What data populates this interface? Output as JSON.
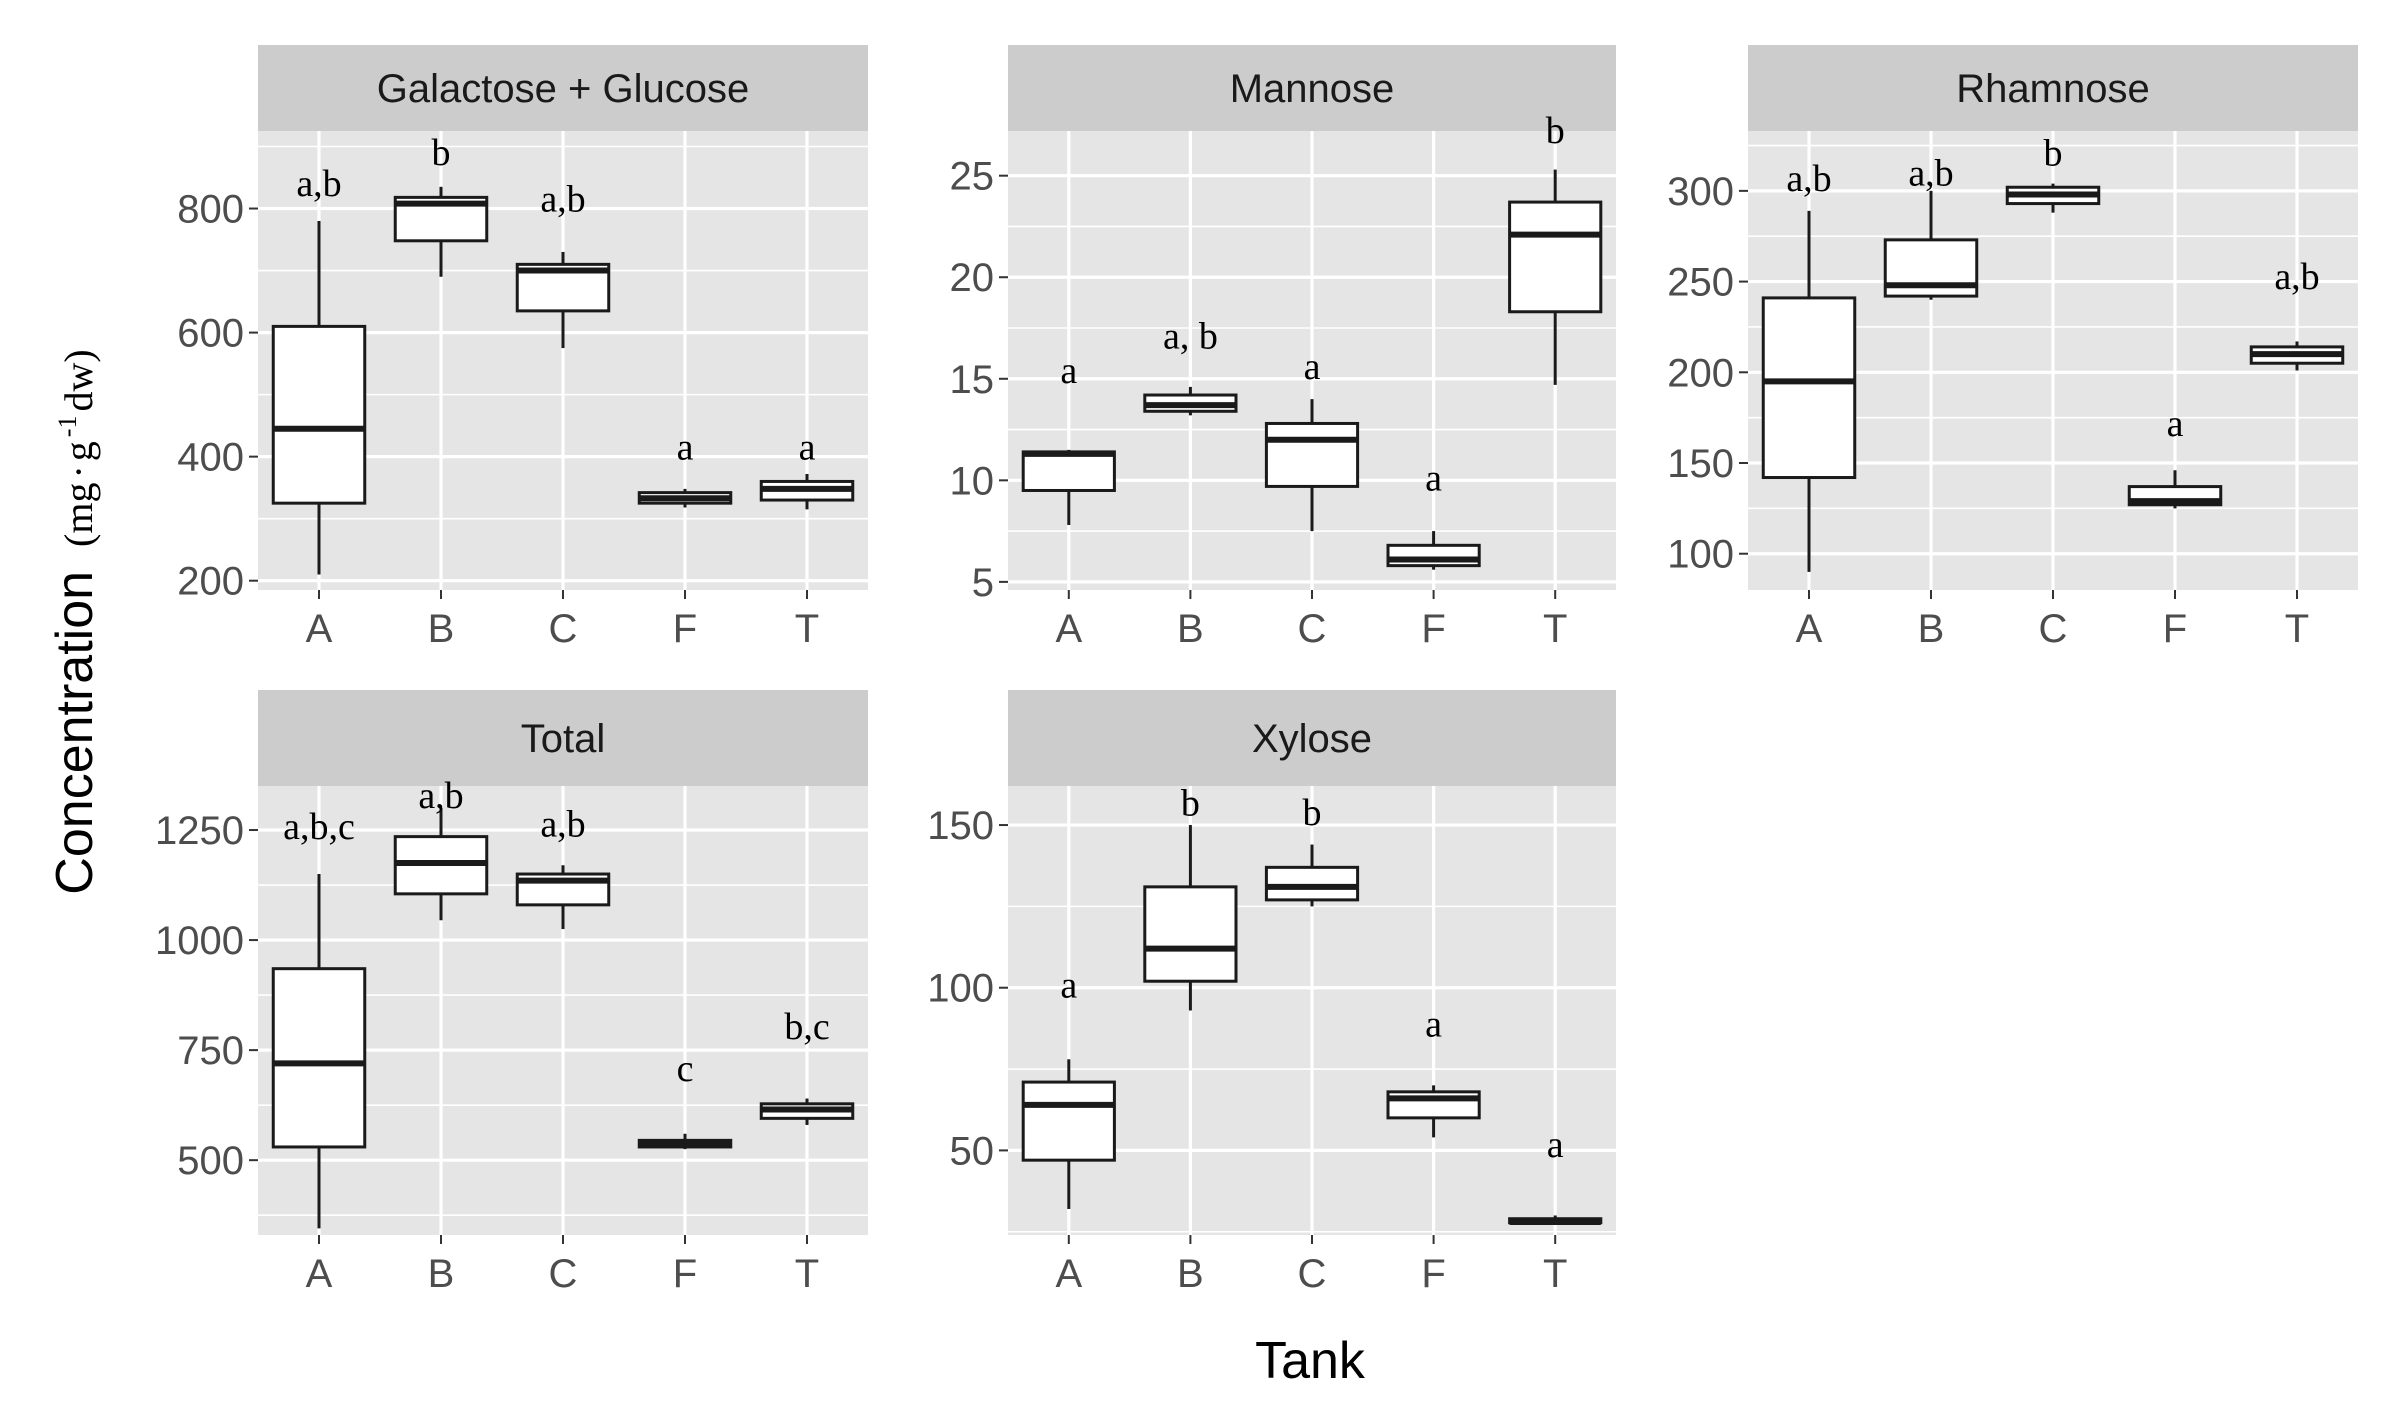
{
  "colors": {
    "panel_bg": "#e5e5e5",
    "strip_bg": "#cccccc",
    "grid": "#ffffff",
    "box_fill": "#ffffff",
    "box_line": "#1a1a1a",
    "tick_text": "#4d4d4d"
  },
  "axis_titles": {
    "x": "Tank",
    "y": "Concentration",
    "y_unit_prefix": "(mg",
    "y_unit_dot": "·",
    "y_unit_g": "g",
    "y_unit_exp": "-1",
    "y_unit_suffix": " dw)"
  },
  "chart_data": [
    {
      "type": "boxplot",
      "title": "Galactose + Glucose",
      "categories": [
        "A",
        "B",
        "C",
        "F",
        "T"
      ],
      "ylim": [
        185,
        925
      ],
      "yticks": [
        200,
        400,
        600,
        800
      ],
      "boxes": [
        {
          "min": 210,
          "q1": 325,
          "median": 445,
          "q3": 610,
          "max": 780
        },
        {
          "min": 690,
          "q1": 748,
          "median": 808,
          "q3": 818,
          "max": 835
        },
        {
          "min": 575,
          "q1": 635,
          "median": 700,
          "q3": 710,
          "max": 730
        },
        {
          "min": 318,
          "q1": 325,
          "median": 333,
          "q3": 342,
          "max": 348
        },
        {
          "min": 315,
          "q1": 330,
          "median": 348,
          "q3": 360,
          "max": 372
        }
      ],
      "letters": [
        "a,b",
        "b",
        "a,b",
        "a",
        "a"
      ],
      "letter_values": [
        820,
        870,
        795,
        395,
        395
      ]
    },
    {
      "type": "boxplot",
      "title": "Mannose",
      "categories": [
        "A",
        "B",
        "C",
        "F",
        "T"
      ],
      "ylim": [
        4.6,
        27.2
      ],
      "yticks": [
        5,
        10,
        15,
        20,
        25
      ],
      "boxes": [
        {
          "min": 7.8,
          "q1": 9.5,
          "median": 11.3,
          "q3": 11.4,
          "max": 11.5
        },
        {
          "min": 13.2,
          "q1": 13.4,
          "median": 13.7,
          "q3": 14.2,
          "max": 14.6
        },
        {
          "min": 7.5,
          "q1": 9.7,
          "median": 12.0,
          "q3": 12.8,
          "max": 14.0
        },
        {
          "min": 5.6,
          "q1": 5.8,
          "median": 6.1,
          "q3": 6.8,
          "max": 7.5
        },
        {
          "min": 14.7,
          "q1": 18.3,
          "median": 22.1,
          "q3": 23.7,
          "max": 25.3
        }
      ],
      "letters": [
        "a",
        "a, b",
        "a",
        "a",
        "b"
      ],
      "letter_values": [
        14.8,
        16.5,
        15.0,
        9.5,
        26.6
      ]
    },
    {
      "type": "boxplot",
      "title": "Rhamnose",
      "categories": [
        "A",
        "B",
        "C",
        "F",
        "T"
      ],
      "ylim": [
        80,
        333
      ],
      "yticks": [
        100,
        150,
        200,
        250,
        300
      ],
      "boxes": [
        {
          "min": 90,
          "q1": 142,
          "median": 195,
          "q3": 241,
          "max": 289
        },
        {
          "min": 240,
          "q1": 242,
          "median": 248,
          "q3": 273,
          "max": 300
        },
        {
          "min": 288,
          "q1": 293,
          "median": 298,
          "q3": 302,
          "max": 304
        },
        {
          "min": 125,
          "q1": 127,
          "median": 129,
          "q3": 137,
          "max": 146
        },
        {
          "min": 201,
          "q1": 205,
          "median": 210,
          "q3": 214,
          "max": 217
        }
      ],
      "letters": [
        "a,b",
        "a,b",
        "b",
        "a",
        "a,b"
      ],
      "letter_values": [
        300,
        303,
        314,
        165,
        246
      ]
    },
    {
      "type": "boxplot",
      "title": "Total",
      "categories": [
        "A",
        "B",
        "C",
        "F",
        "T"
      ],
      "ylim": [
        330,
        1350
      ],
      "yticks": [
        500,
        750,
        1000,
        1250
      ],
      "boxes": [
        {
          "min": 345,
          "q1": 530,
          "median": 720,
          "q3": 935,
          "max": 1150
        },
        {
          "min": 1045,
          "q1": 1105,
          "median": 1175,
          "q3": 1235,
          "max": 1300
        },
        {
          "min": 1025,
          "q1": 1080,
          "median": 1135,
          "q3": 1150,
          "max": 1170
        },
        {
          "min": 525,
          "q1": 530,
          "median": 537,
          "q3": 545,
          "max": 560
        },
        {
          "min": 580,
          "q1": 595,
          "median": 615,
          "q3": 628,
          "max": 640
        }
      ],
      "letters": [
        "a,b,c",
        "a,b",
        "a,b",
        "c",
        "b,c"
      ],
      "letter_values": [
        1230,
        1300,
        1235,
        680,
        775
      ]
    },
    {
      "type": "boxplot",
      "title": "Xylose",
      "categories": [
        "A",
        "B",
        "C",
        "F",
        "T"
      ],
      "ylim": [
        24,
        162
      ],
      "yticks": [
        50,
        100,
        150
      ],
      "boxes": [
        {
          "min": 32,
          "q1": 47,
          "median": 64,
          "q3": 71,
          "max": 78
        },
        {
          "min": 93,
          "q1": 102,
          "median": 112,
          "q3": 131,
          "max": 150
        },
        {
          "min": 125,
          "q1": 127,
          "median": 131,
          "q3": 137,
          "max": 144
        },
        {
          "min": 54,
          "q1": 60,
          "median": 66,
          "q3": 68,
          "max": 70
        },
        {
          "min": 28,
          "q1": 28,
          "median": 28,
          "q3": 29,
          "max": 30
        }
      ],
      "letters": [
        "a",
        "b",
        "b",
        "a",
        "a"
      ],
      "letter_values": [
        97,
        153,
        150,
        85,
        48
      ]
    }
  ]
}
